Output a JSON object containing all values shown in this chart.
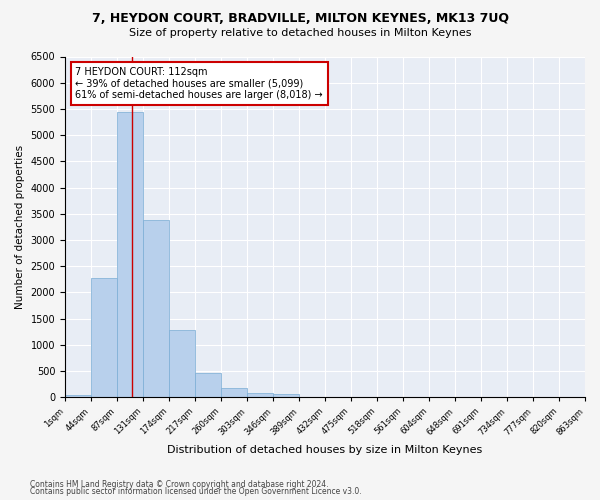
{
  "title": "7, HEYDON COURT, BRADVILLE, MILTON KEYNES, MK13 7UQ",
  "subtitle": "Size of property relative to detached houses in Milton Keynes",
  "xlabel": "Distribution of detached houses by size in Milton Keynes",
  "ylabel": "Number of detached properties",
  "bin_edges": [
    1,
    44,
    87,
    131,
    174,
    217,
    260,
    303,
    346,
    389,
    432,
    475,
    518,
    561,
    604,
    648,
    691,
    734,
    777,
    820,
    863
  ],
  "bar_heights": [
    50,
    2280,
    5450,
    3380,
    1290,
    470,
    185,
    90,
    55,
    5,
    2,
    1,
    0,
    0,
    0,
    0,
    0,
    0,
    0,
    0
  ],
  "bar_color": "#b8d0ec",
  "bar_edge_color": "#7aadd4",
  "property_size": 112,
  "vline_color": "#cc0000",
  "annotation_line1": "7 HEYDON COURT: 112sqm",
  "annotation_line2": "← 39% of detached houses are smaller (5,099)",
  "annotation_line3": "61% of semi-detached houses are larger (8,018) →",
  "annotation_box_color": "#ffffff",
  "annotation_box_edge": "#cc0000",
  "ylim": [
    0,
    6500
  ],
  "yticks": [
    0,
    500,
    1000,
    1500,
    2000,
    2500,
    3000,
    3500,
    4000,
    4500,
    5000,
    5500,
    6000,
    6500
  ],
  "footer1": "Contains HM Land Registry data © Crown copyright and database right 2024.",
  "footer2": "Contains public sector information licensed under the Open Government Licence v3.0.",
  "bg_color": "#f5f5f5",
  "plot_bg_color": "#e8edf5"
}
